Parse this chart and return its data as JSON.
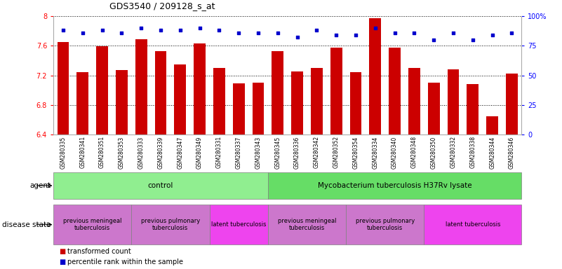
{
  "title": "GDS3540 / 209128_s_at",
  "samples": [
    "GSM280335",
    "GSM280341",
    "GSM280351",
    "GSM280353",
    "GSM280333",
    "GSM280339",
    "GSM280347",
    "GSM280349",
    "GSM280331",
    "GSM280337",
    "GSM280343",
    "GSM280345",
    "GSM280336",
    "GSM280342",
    "GSM280352",
    "GSM280354",
    "GSM280334",
    "GSM280340",
    "GSM280348",
    "GSM280350",
    "GSM280332",
    "GSM280338",
    "GSM280344",
    "GSM280346"
  ],
  "bar_values": [
    7.65,
    7.24,
    7.59,
    7.27,
    7.69,
    7.53,
    7.35,
    7.63,
    7.3,
    7.09,
    7.1,
    7.53,
    7.25,
    7.3,
    7.57,
    7.24,
    7.97,
    7.57,
    7.3,
    7.1,
    7.28,
    7.08,
    6.65,
    7.22
  ],
  "percentile_values": [
    88,
    86,
    88,
    86,
    90,
    88,
    88,
    90,
    88,
    86,
    86,
    86,
    82,
    88,
    84,
    84,
    90,
    86,
    86,
    80,
    86,
    80,
    84,
    86
  ],
  "bar_color": "#CC0000",
  "percentile_color": "#0000CC",
  "ylim_left": [
    6.4,
    8.0
  ],
  "ylim_right": [
    0,
    100
  ],
  "yticks_left": [
    6.4,
    6.8,
    7.2,
    7.6,
    8.0
  ],
  "ytick_labels_left": [
    "6.4",
    "6.8",
    "7.2",
    "7.6",
    "8"
  ],
  "yticks_right": [
    0,
    25,
    50,
    75,
    100
  ],
  "ytick_labels_right": [
    "0",
    "25",
    "50",
    "75",
    "100%"
  ],
  "agent_groups": [
    {
      "label": "control",
      "start": 0,
      "end": 11,
      "color": "#90EE90"
    },
    {
      "label": "Mycobacterium tuberculosis H37Rv lysate",
      "start": 11,
      "end": 24,
      "color": "#66DD66"
    }
  ],
  "disease_groups": [
    {
      "label": "previous meningeal\ntuberculosis",
      "start": 0,
      "end": 4,
      "color": "#CC77CC"
    },
    {
      "label": "previous pulmonary\ntuberculosis",
      "start": 4,
      "end": 8,
      "color": "#CC77CC"
    },
    {
      "label": "latent tuberculosis",
      "start": 8,
      "end": 11,
      "color": "#EE44EE"
    },
    {
      "label": "previous meningeal\ntuberculosis",
      "start": 11,
      "end": 15,
      "color": "#CC77CC"
    },
    {
      "label": "previous pulmonary\ntuberculosis",
      "start": 15,
      "end": 19,
      "color": "#CC77CC"
    },
    {
      "label": "latent tuberculosis",
      "start": 19,
      "end": 24,
      "color": "#EE44EE"
    }
  ],
  "legend_items": [
    {
      "label": "transformed count",
      "color": "#CC0000"
    },
    {
      "label": "percentile rank within the sample",
      "color": "#0000CC"
    }
  ],
  "bg_xtick_color": "#C8C8C8"
}
